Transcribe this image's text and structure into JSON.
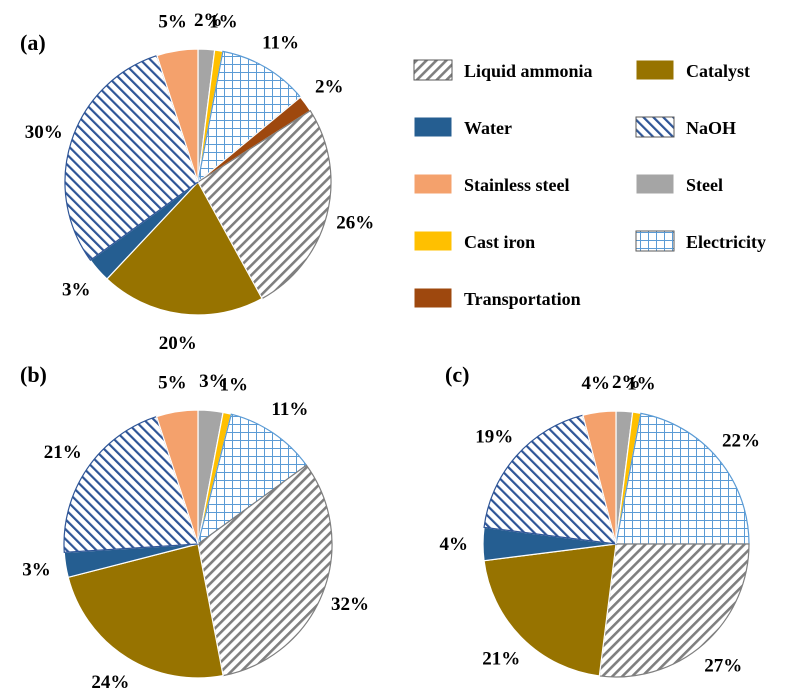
{
  "legend": [
    {
      "key": "liquid_ammonia",
      "label": "Liquid ammonia",
      "fill": "pattern",
      "pattern": "diag-gray",
      "color": "#7f7f7f"
    },
    {
      "key": "catalyst",
      "label": "Catalyst",
      "fill": "solid",
      "color": "#977300"
    },
    {
      "key": "water",
      "label": "Water",
      "fill": "solid",
      "color": "#255e91"
    },
    {
      "key": "naoh",
      "label": "NaOH",
      "fill": "pattern",
      "pattern": "diag-blue",
      "color": "#2e5597"
    },
    {
      "key": "stainless_steel",
      "label": "Stainless steel",
      "fill": "solid",
      "color": "#f4a16c"
    },
    {
      "key": "steel",
      "label": "Steel",
      "fill": "solid",
      "color": "#a5a5a5"
    },
    {
      "key": "cast_iron",
      "label": "Cast iron",
      "fill": "solid",
      "color": "#ffc000"
    },
    {
      "key": "electricity",
      "label": "Electricity",
      "fill": "pattern",
      "pattern": "grid-blue",
      "color": "#5b9bd5"
    },
    {
      "key": "transportation",
      "label": "Transportation",
      "fill": "solid",
      "color": "#9e480e"
    }
  ],
  "chart_data": [
    {
      "type": "pie",
      "panel": "(a)",
      "order": [
        "steel",
        "cast_iron",
        "electricity",
        "transportation",
        "liquid_ammonia",
        "catalyst",
        "water",
        "naoh",
        "stainless_steel"
      ],
      "values": [
        2,
        1,
        11,
        2,
        26,
        20,
        3,
        30,
        5
      ],
      "labels": [
        "2%",
        "1%",
        "11%",
        "2%",
        "26%",
        "20%",
        "3%",
        "30%",
        "5%"
      ]
    },
    {
      "type": "pie",
      "panel": "(b)",
      "order": [
        "steel",
        "cast_iron",
        "electricity",
        "liquid_ammonia",
        "catalyst",
        "water",
        "naoh",
        "stainless_steel"
      ],
      "values": [
        3,
        1,
        11,
        32,
        24,
        3,
        21,
        5
      ],
      "labels": [
        "3%",
        "1%",
        "11%",
        "32%",
        "24%",
        "3%",
        "21%",
        "5%"
      ]
    },
    {
      "type": "pie",
      "panel": "(c)",
      "order": [
        "steel",
        "cast_iron",
        "electricity",
        "liquid_ammonia",
        "catalyst",
        "water",
        "naoh",
        "stainless_steel"
      ],
      "values": [
        2,
        1,
        22,
        27,
        21,
        4,
        19,
        4
      ],
      "labels": [
        "2%",
        "1%",
        "22%",
        "27%",
        "21%",
        "4%",
        "19%",
        "4%"
      ]
    }
  ]
}
